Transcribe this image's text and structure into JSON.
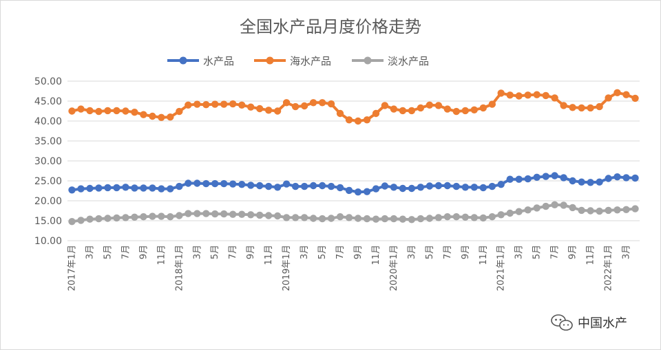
{
  "chart_data": {
    "type": "line",
    "title": "全国水产品月度价格走势",
    "xlabel": "",
    "ylabel": "",
    "ylim": [
      10,
      50
    ],
    "y_ticks": [
      "10.00",
      "15.00",
      "20.00",
      "25.00",
      "30.00",
      "35.00",
      "40.00",
      "45.00",
      "50.00"
    ],
    "grid": true,
    "legend_position": "top",
    "x": [
      "2017年1月",
      "2月",
      "3月",
      "4月",
      "5月",
      "6月",
      "7月",
      "8月",
      "9月",
      "10月",
      "11月",
      "12月",
      "2018年1月",
      "2月",
      "3月",
      "4月",
      "5月",
      "6月",
      "7月",
      "8月",
      "9月",
      "10月",
      "11月",
      "12月",
      "2019年1月",
      "2月",
      "3月",
      "4月",
      "5月",
      "6月",
      "7月",
      "8月",
      "9月",
      "10月",
      "11月",
      "12月",
      "2020年1月",
      "2月",
      "3月",
      "4月",
      "5月",
      "6月",
      "7月",
      "8月",
      "9月",
      "10月",
      "11月",
      "12月",
      "2021年1月",
      "2月",
      "3月",
      "4月",
      "5月",
      "6月",
      "7月",
      "8月",
      "9月",
      "10月",
      "11月",
      "12月",
      "2022年1月",
      "2月",
      "3月",
      "4月"
    ],
    "x_tick_labels": [
      "2017年1月",
      "3月",
      "5月",
      "7月",
      "9月",
      "11月",
      "2018年1月",
      "3月",
      "5月",
      "7月",
      "9月",
      "11月",
      "2019年1月",
      "3月",
      "5月",
      "7月",
      "9月",
      "11月",
      "2020年1月",
      "3月",
      "5月",
      "7月",
      "9月",
      "11月",
      "2021年1月",
      "3月",
      "5月",
      "7月",
      "9月",
      "11月",
      "2022年1月",
      "3月"
    ],
    "series": [
      {
        "name": "水产品",
        "color": "#4472C4",
        "values": [
          22.7,
          23.0,
          23.1,
          23.2,
          23.3,
          23.3,
          23.4,
          23.2,
          23.2,
          23.2,
          23.0,
          23.0,
          23.6,
          24.4,
          24.4,
          24.3,
          24.3,
          24.3,
          24.2,
          24.1,
          23.9,
          23.8,
          23.6,
          23.4,
          24.2,
          23.6,
          23.6,
          23.8,
          23.8,
          23.6,
          23.3,
          22.6,
          22.2,
          22.3,
          23.0,
          23.7,
          23.4,
          23.1,
          23.1,
          23.4,
          23.7,
          23.8,
          23.8,
          23.6,
          23.4,
          23.4,
          23.3,
          23.6,
          24.1,
          25.4,
          25.4,
          25.5,
          25.9,
          26.1,
          26.3,
          25.8,
          25.0,
          24.7,
          24.6,
          24.7,
          25.6,
          26.0,
          25.8,
          25.7
        ]
      },
      {
        "name": "海水产品",
        "color": "#ED7D31",
        "values": [
          42.5,
          43.0,
          42.6,
          42.4,
          42.6,
          42.6,
          42.5,
          42.2,
          41.6,
          41.2,
          40.9,
          41.0,
          42.4,
          44.0,
          44.2,
          44.1,
          44.2,
          44.2,
          44.3,
          44.0,
          43.5,
          43.1,
          42.7,
          42.5,
          44.6,
          43.6,
          43.8,
          44.6,
          44.6,
          44.3,
          41.9,
          40.3,
          40.0,
          40.3,
          41.9,
          43.9,
          43.0,
          42.6,
          42.6,
          43.3,
          44.0,
          43.9,
          43.0,
          42.4,
          42.6,
          42.8,
          43.3,
          44.2,
          47.0,
          46.5,
          46.3,
          46.5,
          46.6,
          46.4,
          45.8,
          43.9,
          43.4,
          43.3,
          43.3,
          43.6,
          45.8,
          47.1,
          46.6,
          45.7
        ]
      },
      {
        "name": "淡水产品",
        "color": "#A5A5A5",
        "values": [
          14.8,
          15.1,
          15.4,
          15.5,
          15.6,
          15.7,
          15.8,
          15.9,
          16.0,
          16.1,
          16.1,
          16.0,
          16.3,
          16.8,
          16.8,
          16.8,
          16.7,
          16.7,
          16.6,
          16.6,
          16.5,
          16.4,
          16.3,
          16.2,
          15.8,
          15.8,
          15.8,
          15.6,
          15.5,
          15.6,
          16.0,
          15.8,
          15.6,
          15.5,
          15.4,
          15.5,
          15.5,
          15.4,
          15.3,
          15.5,
          15.6,
          15.8,
          16.0,
          16.0,
          15.9,
          15.8,
          15.7,
          16.0,
          16.5,
          16.9,
          17.3,
          17.7,
          18.2,
          18.6,
          19.0,
          18.9,
          18.3,
          17.6,
          17.5,
          17.4,
          17.6,
          17.7,
          17.8,
          18.0
        ]
      }
    ]
  },
  "watermark": {
    "icon": "wechat-icon",
    "text": "中国水产"
  }
}
